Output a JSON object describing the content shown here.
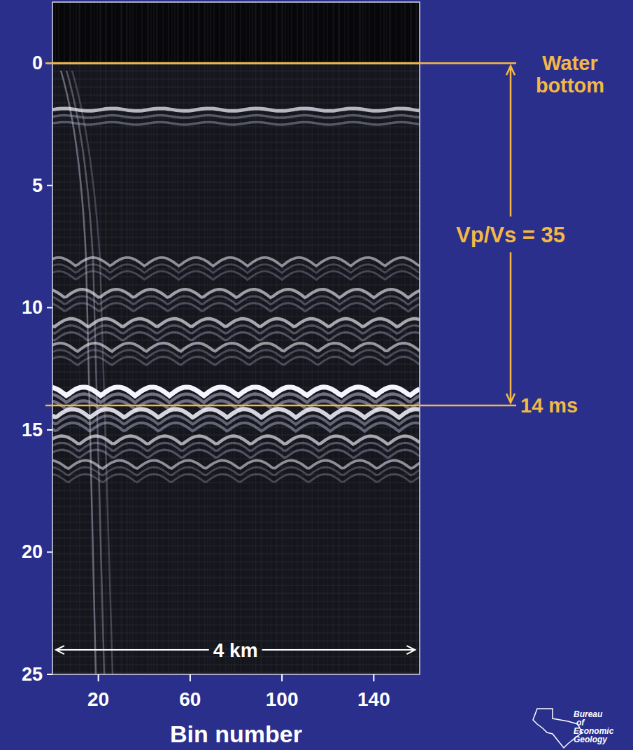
{
  "chart_data": {
    "type": "seismic",
    "x_label": "Bin number",
    "xlim": [
      0,
      160
    ],
    "xticks": [
      20,
      60,
      100,
      140
    ],
    "ylim": [
      -2.5,
      25
    ],
    "yticks": [
      0,
      5,
      10,
      15,
      20,
      25
    ],
    "reflectors": {
      "times": [
        1.9,
        8.3,
        9.6,
        10.8,
        11.8,
        13.6,
        14.5,
        15.6,
        16.6
      ],
      "amplitudes": [
        0.6,
        0.35,
        0.45,
        0.5,
        0.4,
        1,
        0.8,
        0.5,
        0.35
      ]
    },
    "annotations": {
      "water_bottom": {
        "time": 0,
        "label": "Water bottom"
      },
      "interval": {
        "label": "Vp/Vs = 35"
      },
      "base": {
        "time": 14,
        "label": "14 ms"
      },
      "scale_bar": {
        "label": "4 km",
        "x": [
          1.5,
          158
        ],
        "time": 24
      }
    },
    "logo": "Bureau of Economic Geology",
    "color": "#f4b844"
  }
}
